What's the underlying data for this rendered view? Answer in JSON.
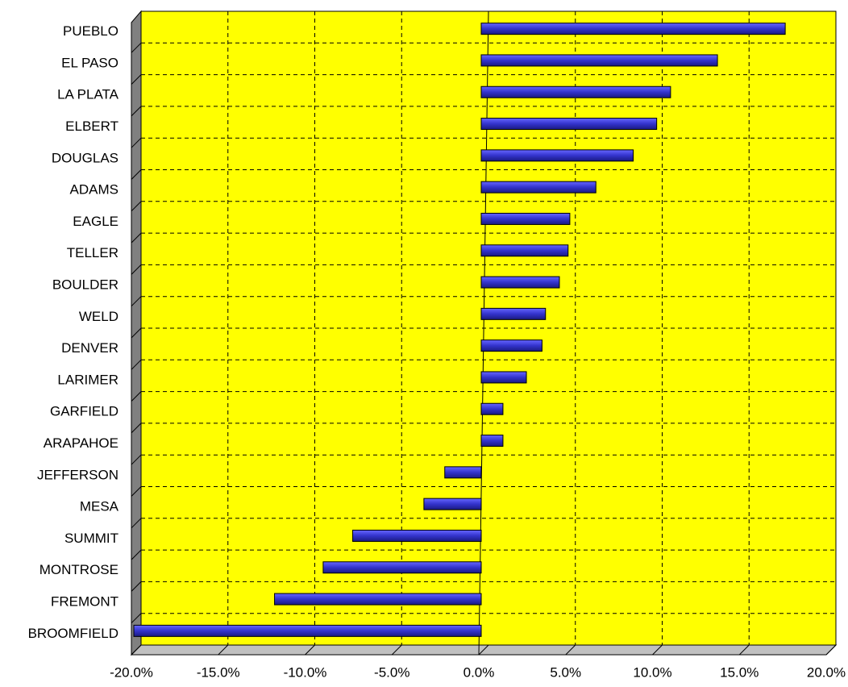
{
  "chart_data": {
    "type": "bar",
    "orientation": "horizontal",
    "categories": [
      "PUEBLO",
      "EL PASO",
      "LA PLATA",
      "ELBERT",
      "DOUGLAS",
      "ADAMS",
      "EAGLE",
      "TELLER",
      "BOULDER",
      "WELD",
      "DENVER",
      "LARIMER",
      "GARFIELD",
      "ARAPAHOE",
      "JEFFERSON",
      "MESA",
      "SUMMIT",
      "MONTROSE",
      "FREMONT",
      "BROOMFIELD"
    ],
    "values": [
      17.5,
      13.6,
      10.9,
      10.1,
      8.75,
      6.6,
      5.1,
      5.0,
      4.5,
      3.7,
      3.5,
      2.6,
      1.25,
      1.25,
      -2.1,
      -3.3,
      -7.4,
      -9.1,
      -11.9,
      -20.0
    ],
    "color": "#3333cc",
    "xlim": [
      -20,
      20
    ],
    "xticks": [
      {
        "value": -20,
        "label": "-20.0%"
      },
      {
        "value": -15,
        "label": "-15.0%"
      },
      {
        "value": -10,
        "label": "-10.0%"
      },
      {
        "value": -5,
        "label": "-5.0%"
      },
      {
        "value": 0,
        "label": "0.0%"
      },
      {
        "value": 5,
        "label": "5.0%"
      },
      {
        "value": 10,
        "label": "10.0%"
      },
      {
        "value": 15,
        "label": "15.0%"
      },
      {
        "value": 20,
        "label": "20.0%"
      }
    ],
    "grid": true
  }
}
